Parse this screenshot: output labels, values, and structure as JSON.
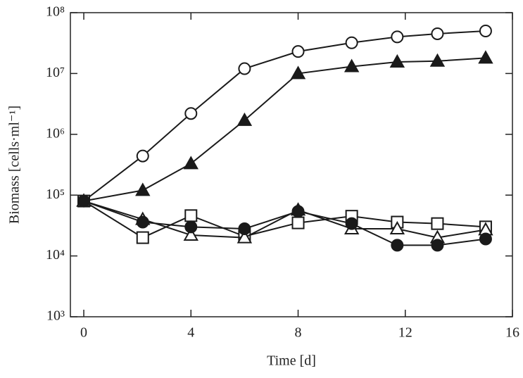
{
  "chart_data": {
    "type": "line",
    "yscale": "log",
    "xlabel": "Time [d]",
    "ylabel": "Biomass [cells·ml⁻¹]",
    "x": [
      0,
      2.2,
      4,
      6,
      8,
      10,
      11.7,
      13.2,
      15
    ],
    "xlim": [
      -0.5,
      16
    ],
    "xticks": [
      0,
      4,
      8,
      12,
      16
    ],
    "ylim": [
      1000,
      100000000
    ],
    "yticks": [
      {
        "value": 1000,
        "label": "10³"
      },
      {
        "value": 10000,
        "label": "10⁴"
      },
      {
        "value": 100000,
        "label": "10⁵"
      },
      {
        "value": 1000000,
        "label": "10⁶"
      },
      {
        "value": 10000000,
        "label": "10⁷"
      },
      {
        "value": 100000000,
        "label": "10⁸"
      }
    ],
    "series": [
      {
        "color": "#1a1a1a",
        "marker": "circle",
        "filled": false,
        "values": [
          80000,
          440000,
          2200000,
          12000000,
          23000000,
          32000000,
          40000000,
          45000000,
          50000000
        ]
      },
      {
        "color": "#1a1a1a",
        "marker": "triangle",
        "filled": true,
        "values": [
          80000,
          120000,
          330000,
          1700000,
          10000000,
          13000000,
          15500000,
          16000000,
          18000000
        ]
      },
      {
        "color": "#1a1a1a",
        "marker": "square",
        "filled": false,
        "values": [
          80000,
          20000,
          46000,
          21000,
          35000,
          45000,
          36000,
          34000,
          30000
        ]
      },
      {
        "color": "#1a1a1a",
        "marker": "triangle",
        "filled": false,
        "values": [
          80000,
          40000,
          22000,
          20000,
          57000,
          28000,
          28000,
          20000,
          27000
        ]
      },
      {
        "color": "#1a1a1a",
        "marker": "circle",
        "filled": true,
        "values": [
          80000,
          36000,
          30000,
          28000,
          54000,
          34000,
          15000,
          15000,
          19000
        ]
      }
    ]
  }
}
